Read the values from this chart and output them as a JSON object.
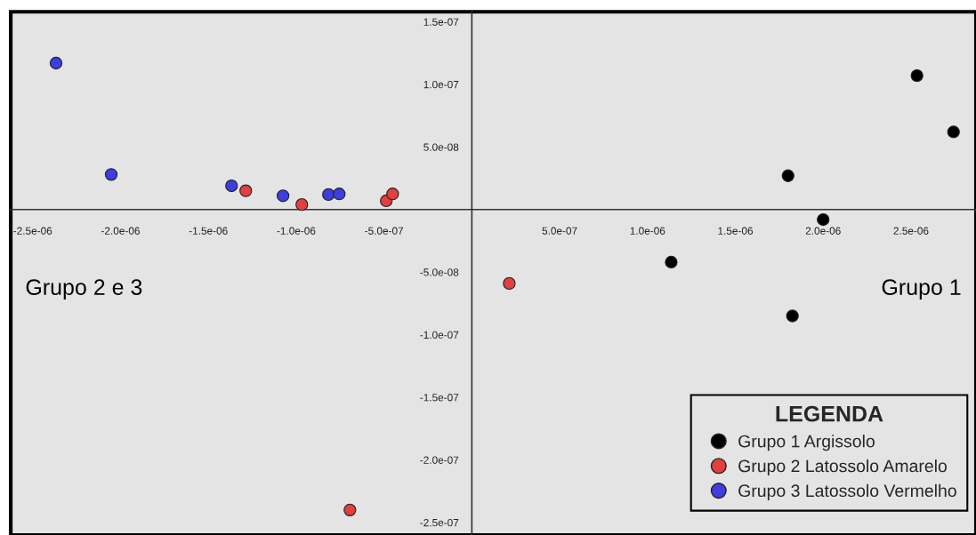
{
  "chart_data": {
    "type": "scatter",
    "series": [
      {
        "name": "Grupo 1 Argissolo",
        "color": "#000000",
        "x": [
          1.135e-06,
          1.8e-06,
          2e-06,
          1.825e-06,
          2.534e-06,
          2.742e-06
        ],
        "values": [
          -4.2e-08,
          2.7e-08,
          -8e-09,
          -8.5e-08,
          1.07e-07,
          6.2e-08
        ]
      },
      {
        "name": "Grupo 2 Latossolo Amarelo",
        "color": "#e04040",
        "x": [
          -1.287e-06,
          -9.68e-07,
          -4.87e-07,
          -4.51e-07,
          2.13e-07,
          -6.94e-07
        ],
        "values": [
          1.5e-08,
          4e-09,
          7e-09,
          1.25e-08,
          -5.9e-08,
          -2.4e-07
        ]
      },
      {
        "name": "Grupo 3 Latossolo Vermelho",
        "color": "#3d3de0",
        "x": [
          -2.367e-06,
          -2.053e-06,
          -1.368e-06,
          -1.075e-06,
          -8.16e-07,
          -7.55e-07
        ],
        "values": [
          1.17e-07,
          2.8e-08,
          1.9e-08,
          1.1e-08,
          1.2e-08,
          1.25e-08
        ]
      }
    ],
    "xlim": [
      -2.625e-06,
      2.87e-06
    ],
    "ylim": [
      -2.6e-07,
      1.58e-07
    ],
    "xticks": [
      {
        "value": -2.5e-06,
        "label": "-2.5e-06"
      },
      {
        "value": -2e-06,
        "label": "-2.0e-06"
      },
      {
        "value": -1.5e-06,
        "label": "-1.5e-06"
      },
      {
        "value": -1e-06,
        "label": "-1.0e-06"
      },
      {
        "value": -5e-07,
        "label": "-5.0e-07"
      },
      {
        "value": 5e-07,
        "label": "5.0e-07"
      },
      {
        "value": 1e-06,
        "label": "1.0e-06"
      },
      {
        "value": 1.5e-06,
        "label": "1.5e-06"
      },
      {
        "value": 2e-06,
        "label": "2.0e-06"
      },
      {
        "value": 2.5e-06,
        "label": "2.5e-06"
      }
    ],
    "yticks": [
      {
        "value": 1.5e-07,
        "label": "1.5e-07"
      },
      {
        "value": 1e-07,
        "label": "1.0e-07"
      },
      {
        "value": 5e-08,
        "label": "5.0e-08"
      },
      {
        "value": -5e-08,
        "label": "-5.0e-08"
      },
      {
        "value": -1e-07,
        "label": "-1.0e-07"
      },
      {
        "value": -1.5e-07,
        "label": "-1.5e-07"
      },
      {
        "value": -2e-07,
        "label": "-2.0e-07"
      },
      {
        "value": -2.5e-07,
        "label": "-2.5e-07"
      }
    ],
    "legend_title": "LEGENDA",
    "legend": "bottom right",
    "marker": "circle",
    "grid": false,
    "annotations": [
      "Grupo 2 e 3",
      "Grupo 1"
    ]
  }
}
